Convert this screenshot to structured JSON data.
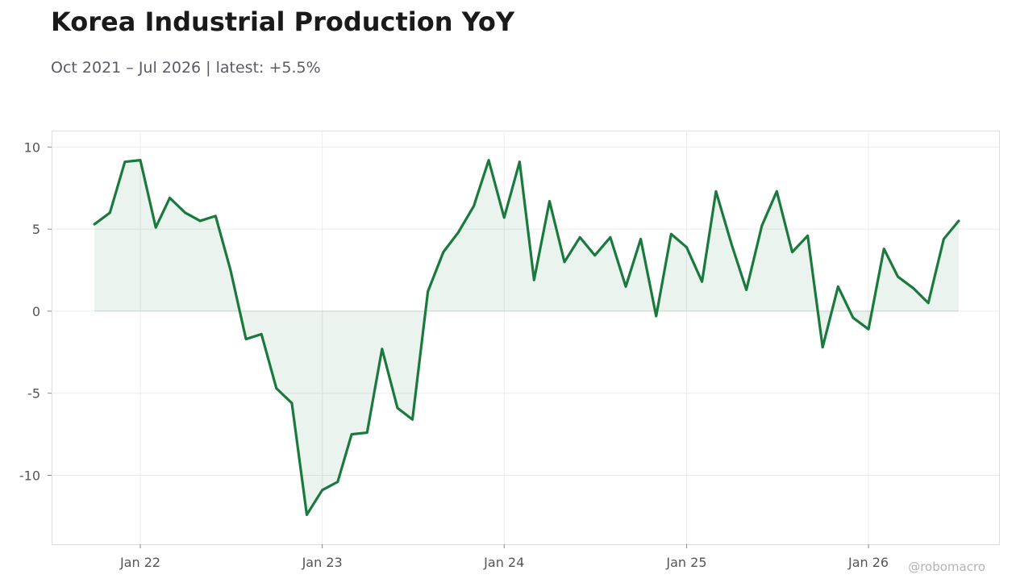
{
  "header": {
    "title": "Korea Industrial Production YoY",
    "subtitle": "Oct 2021 – Jul 2026 | latest: +5.5%"
  },
  "watermark": "@robomacro",
  "colors": {
    "line": "#1a7a3e",
    "fill": "#1a7a3e",
    "grid": "#ececec",
    "frame": "#dddddd",
    "tick_text": "#555555"
  },
  "chart_data": {
    "type": "area",
    "title": "Korea Industrial Production YoY",
    "subtitle": "Oct 2021 – Jul 2026 | latest: +5.5%",
    "xlabel": "",
    "ylabel": "",
    "x_ticks": [
      {
        "label": "Jan 22",
        "date": "2022-01"
      },
      {
        "label": "Jan 23",
        "date": "2023-01"
      },
      {
        "label": "Jan 24",
        "date": "2024-01"
      },
      {
        "label": "Jan 25",
        "date": "2025-01"
      },
      {
        "label": "Jan 26",
        "date": "2026-01"
      }
    ],
    "y_ticks": [
      10,
      5,
      0,
      -5,
      -10
    ],
    "y_tick_labels": [
      "10",
      "5",
      "0",
      "-5",
      "-10"
    ],
    "ylim": [
      -14.2,
      11.0
    ],
    "xlim": [
      "2021-07-07",
      "2026-09-20"
    ],
    "grid": true,
    "legend": "none",
    "series": [
      {
        "x": [
          "2021-10",
          "2021-11",
          "2021-12",
          "2022-01",
          "2022-02",
          "2022-03",
          "2022-04",
          "2022-05",
          "2022-06",
          "2022-07",
          "2022-08",
          "2022-09",
          "2022-10",
          "2022-11",
          "2022-12",
          "2023-01",
          "2023-02",
          "2023-03",
          "2023-04",
          "2023-05",
          "2023-06",
          "2023-07",
          "2023-08",
          "2023-09",
          "2023-10",
          "2023-11",
          "2023-12",
          "2024-01",
          "2024-02",
          "2024-03",
          "2024-04",
          "2024-05",
          "2024-06",
          "2024-07",
          "2024-08",
          "2024-09",
          "2024-10",
          "2024-11",
          "2024-12",
          "2025-01",
          "2025-02",
          "2025-03",
          "2025-04",
          "2025-05",
          "2025-06",
          "2025-07",
          "2025-08",
          "2025-09",
          "2025-10",
          "2025-11",
          "2025-12",
          "2026-01",
          "2026-02",
          "2026-03",
          "2026-04",
          "2026-05",
          "2026-06",
          "2026-07"
        ],
        "values": [
          5.3,
          6.0,
          9.1,
          9.2,
          5.1,
          6.9,
          6.0,
          5.5,
          5.8,
          2.5,
          -1.7,
          -1.4,
          -4.7,
          -5.6,
          -12.4,
          -10.9,
          -10.4,
          -7.5,
          -7.4,
          -2.3,
          -5.9,
          -6.6,
          1.2,
          3.6,
          4.8,
          6.4,
          9.2,
          5.7,
          9.1,
          1.9,
          6.7,
          3.0,
          4.5,
          3.4,
          4.5,
          1.5,
          4.4,
          -0.3,
          4.7,
          3.9,
          1.8,
          7.3,
          4.1,
          1.3,
          5.2,
          7.3,
          3.6,
          4.6,
          -2.2,
          1.5,
          -0.4,
          -1.1,
          3.8,
          2.1,
          1.4,
          0.5,
          4.4,
          5.5
        ]
      }
    ]
  }
}
